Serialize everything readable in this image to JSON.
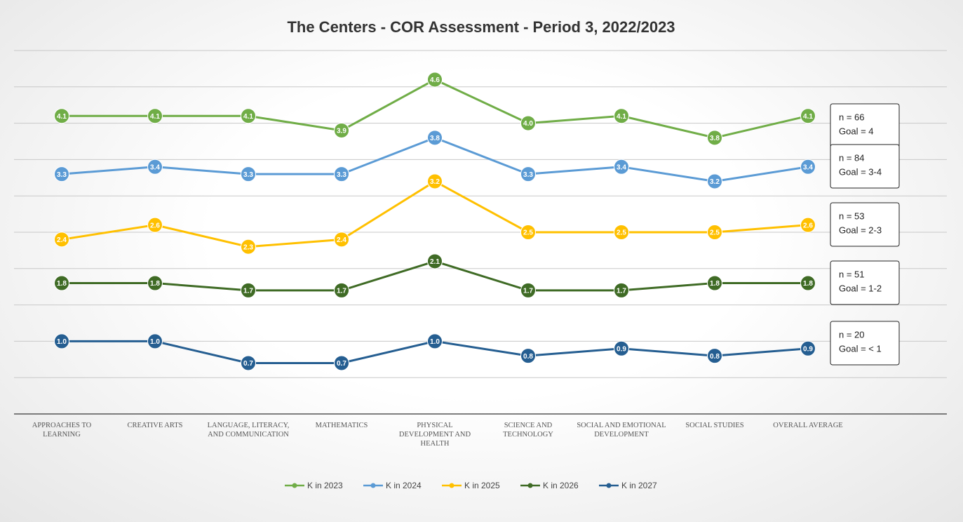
{
  "chart_data": {
    "type": "line",
    "title": "The Centers - COR Assessment - Period 3, 2022/2023",
    "categories": [
      "APPROACHES TO LEARNING",
      "CREATIVE ARTS",
      "LANGUAGE, LITERACY, AND COMMUNICATION",
      "MATHEMATICS",
      "PHYSICAL DEVELOPMENT AND HEALTH",
      "SCIENCE AND TECHNOLOGY",
      "SOCIAL AND EMOTIONAL DEVELOPMENT",
      "SOCIAL STUDIES",
      "OVERALL AVERAGE"
    ],
    "series": [
      {
        "name": "K in 2023",
        "color": "#70ad47",
        "values": [
          4.1,
          4.1,
          4.1,
          3.9,
          4.6,
          4.0,
          4.1,
          3.8,
          4.1
        ],
        "value_labels": [
          "4.1",
          "4.1",
          "4.1",
          "3.9",
          "4.6",
          "4.0",
          "4.1",
          "3.8",
          "4.1"
        ]
      },
      {
        "name": "K in 2024",
        "color": "#5b9bd5",
        "values": [
          3.3,
          3.4,
          3.3,
          3.3,
          3.8,
          3.3,
          3.4,
          3.2,
          3.4
        ],
        "value_labels": [
          "3.3",
          "3.4",
          "3.3",
          "3.3",
          "3.8",
          "3.3",
          "3.4",
          "3.2",
          "3.4"
        ]
      },
      {
        "name": "K in 2025",
        "color": "#ffc000",
        "values": [
          2.4,
          2.6,
          2.3,
          2.4,
          3.2,
          2.5,
          2.5,
          2.5,
          2.6
        ],
        "value_labels": [
          "2.4",
          "2.6",
          "2.3",
          "2.4",
          "3.2",
          "2.5",
          "2.5",
          "2.5",
          "2.6"
        ]
      },
      {
        "name": "K in 2026",
        "color": "#3f6b25",
        "values": [
          1.8,
          1.8,
          1.7,
          1.7,
          2.1,
          1.7,
          1.7,
          1.8,
          1.8
        ],
        "value_labels": [
          "1.8",
          "1.8",
          "1.7",
          "1.7",
          "2.1",
          "1.7",
          "1.7",
          "1.8",
          "1.8"
        ]
      },
      {
        "name": "K in 2027",
        "color": "#255e91",
        "values": [
          1.0,
          1.0,
          0.7,
          0.7,
          1.0,
          0.8,
          0.9,
          0.8,
          0.9
        ],
        "value_labels": [
          "1.0",
          "1.0",
          "0.7",
          "0.7",
          "1.0",
          "0.8",
          "0.9",
          "0.8",
          "0.9"
        ]
      }
    ],
    "annotations": [
      [
        "n = 66",
        "Goal = 4"
      ],
      [
        "n = 84",
        "Goal = 3-4"
      ],
      [
        "n = 53",
        "Goal = 2-3"
      ],
      [
        "n = 51",
        "Goal = 1-2"
      ],
      [
        "n = 20",
        "Goal = < 1"
      ]
    ],
    "ylim": [
      0,
      5
    ],
    "yticks": [
      0,
      0.5,
      1,
      1.5,
      2,
      2.5,
      3,
      3.5,
      4,
      4.5,
      5
    ],
    "grid": true,
    "legend": "bottom"
  }
}
